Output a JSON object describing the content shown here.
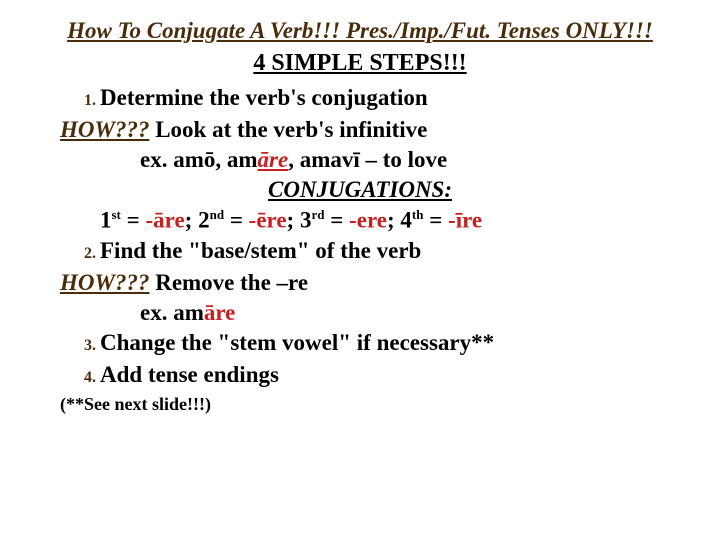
{
  "title": "How To Conjugate A Verb!!! Pres./Imp./Fut. Tenses ONLY!!!",
  "subtitle": "4 SIMPLE STEPS!!!",
  "how_label": "HOW???",
  "step1": {
    "text": "Determine the verb's conjugation",
    "how_rest": "   Look at the verb's infinitive",
    "example_pre": "ex.  amō, am",
    "example_red": "āre",
    "example_post": ", amavī – to love"
  },
  "conj_header": "CONJUGATIONS:",
  "conj_line": {
    "p1": "1",
    "s1": "st",
    "eq": " = ",
    "r1": "-āre",
    "sep": "; ",
    "p2": "2",
    "s2": "nd",
    "r2": "-ēre",
    "p3": "3",
    "s3": "rd",
    "r3": "-ere",
    "p4": "4",
    "s4": "th",
    "r4": "-īre"
  },
  "step2": {
    "text": "Find the \"base/stem\" of the verb",
    "how_rest": "  Remove the –re",
    "example_pre": "ex. am",
    "example_red": "āre"
  },
  "step3": "Change the \"stem vowel\" if necessary**",
  "step4": "Add tense endings",
  "footnote": "(**See next slide!!!)",
  "colors": {
    "accent": "#4a2c0a",
    "red": "#c82020",
    "text": "#000000",
    "bg": "#ffffff"
  },
  "fonts": {
    "family": "Times New Roman serif",
    "body_size": 23,
    "footnote_size": 18
  }
}
